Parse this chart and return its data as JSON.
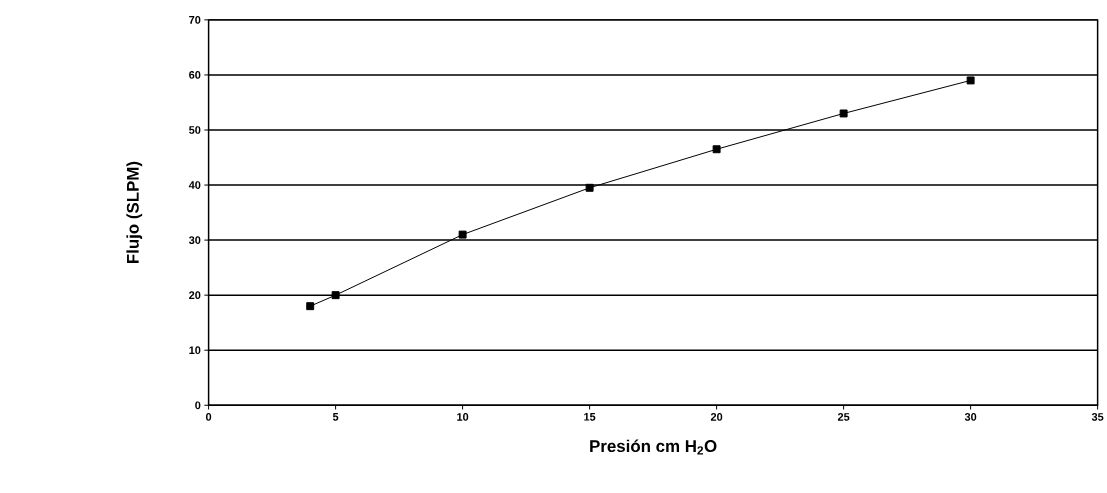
{
  "chart_data": {
    "type": "line",
    "xlabel": "Presión cm H$_{2}$O",
    "ylabel": "Flujo (SLPM)",
    "x": [
      4,
      5,
      10,
      15,
      20,
      25,
      30
    ],
    "series": [
      {
        "color": "#000000",
        "values": [
          18,
          20,
          31,
          39.5,
          46.5,
          53,
          59
        ]
      }
    ],
    "xlim": [
      0,
      35
    ],
    "ylim": [
      0,
      70
    ],
    "xticks": [
      0,
      5,
      10,
      15,
      20,
      25,
      30,
      35
    ],
    "yticks": [
      0,
      10,
      20,
      30,
      40,
      50,
      60,
      70
    ],
    "grid": "y",
    "marker": "square",
    "line_style": "solid"
  }
}
